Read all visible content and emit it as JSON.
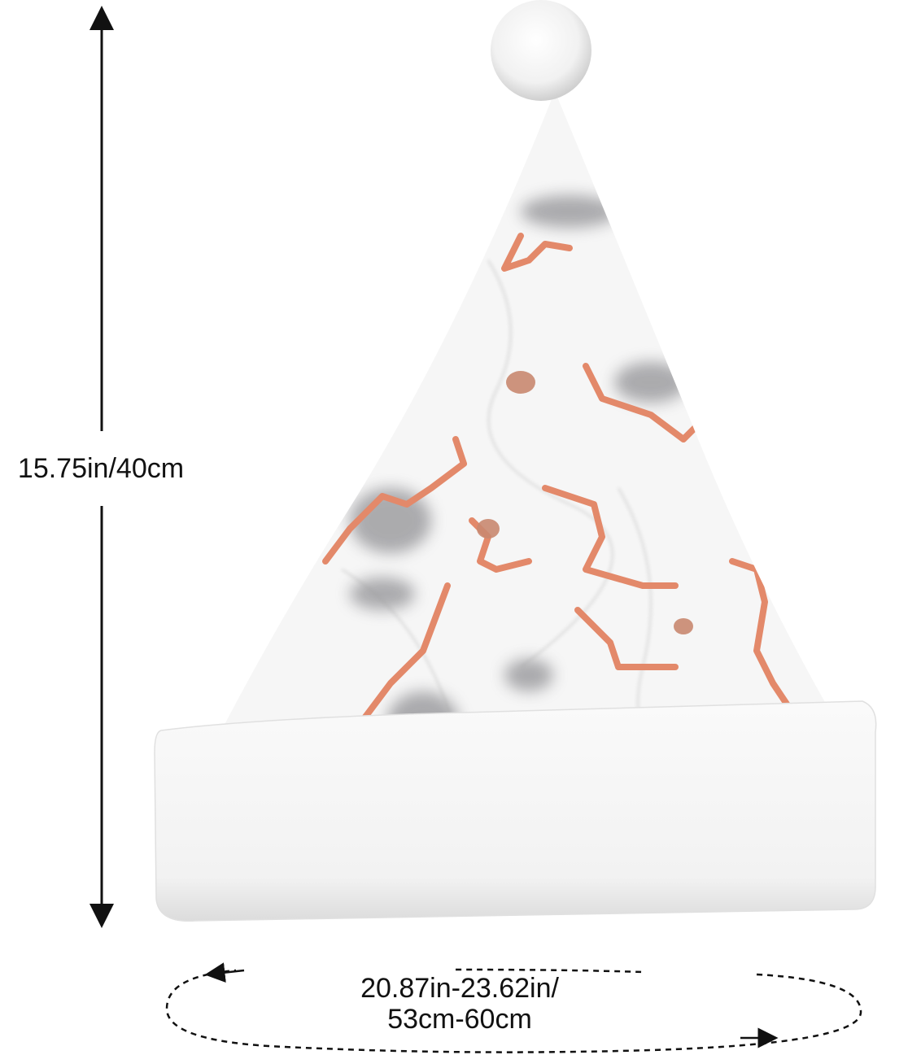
{
  "dimensions": {
    "height": "15.75in/40cm",
    "circumference": {
      "line1": "20.87in-23.62in/",
      "line2": "53cm-60cm"
    }
  }
}
